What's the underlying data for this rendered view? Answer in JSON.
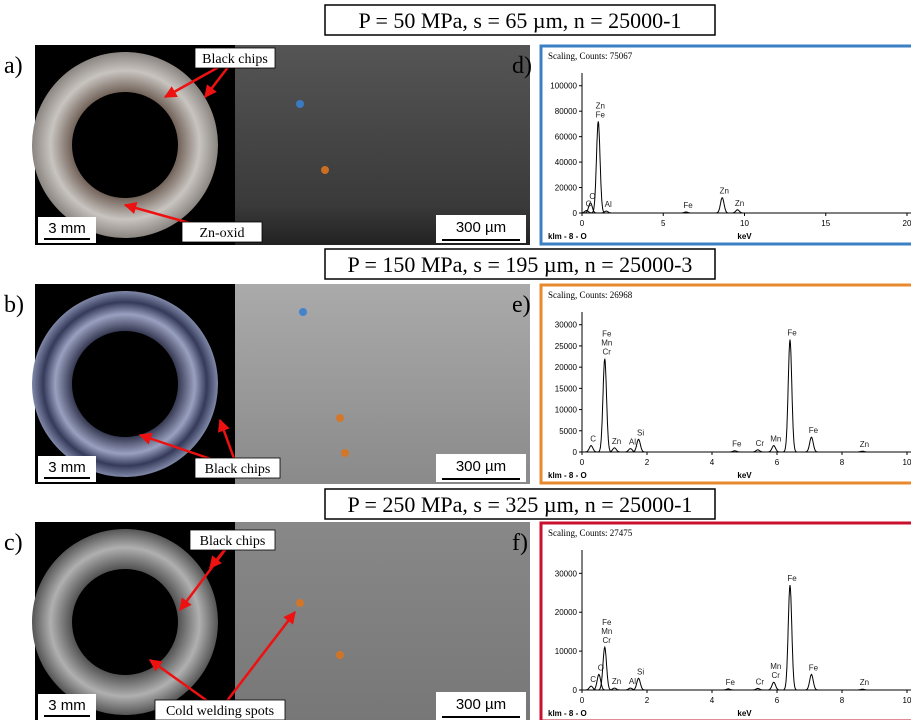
{
  "panels": [
    {
      "title": "P = 50 MPa, s = 65 µm, n = 25000-1",
      "photo_label": "a)",
      "annotations": [
        "Black chips",
        "Zn-oxid"
      ],
      "scale_photo": "3 mm",
      "scale_sem": "300 µm",
      "spectrum": {
        "label": "d)",
        "header": "Scaling, Counts: 75067",
        "footer": "klm - 8 - O",
        "xlabel": "keV",
        "border_color": "#3b7fc4",
        "xlim": [
          0,
          20
        ],
        "xticks": [
          0,
          5,
          10,
          15,
          20
        ],
        "ylim": [
          0,
          110000
        ],
        "yticks": [
          0,
          20000,
          40000,
          60000,
          80000,
          100000
        ],
        "peaks": [
          {
            "x": 0.28,
            "y": 2000,
            "labels": [
              "C"
            ]
          },
          {
            "x": 0.52,
            "y": 8000,
            "labels": [
              "O"
            ]
          },
          {
            "x": 1.0,
            "y": 72000,
            "labels": [
              "Zn",
              "Fe"
            ]
          },
          {
            "x": 1.49,
            "y": 1500,
            "labels": [
              "Al"
            ]
          },
          {
            "x": 6.4,
            "y": 800,
            "labels": [
              "Fe"
            ]
          },
          {
            "x": 8.63,
            "y": 12000,
            "labels": [
              "Zn"
            ]
          },
          {
            "x": 9.57,
            "y": 2500,
            "labels": [
              "Zn"
            ]
          }
        ]
      }
    },
    {
      "title": "P = 150 MPa, s = 195 µm, n = 25000-3",
      "photo_label": "b)",
      "annotations": [
        "Black chips"
      ],
      "scale_photo": "3 mm",
      "scale_sem": "300 µm",
      "spectrum": {
        "label": "e)",
        "header": "Scaling, Counts: 26968",
        "footer": "klm - 8 - O",
        "xlabel": "keV",
        "border_color": "#e8892d",
        "xlim": [
          0,
          10
        ],
        "xticks": [
          0,
          2,
          4,
          6,
          8,
          10
        ],
        "ylim": [
          0,
          33000
        ],
        "yticks": [
          0,
          5000,
          10000,
          15000,
          20000,
          25000,
          30000
        ],
        "peaks": [
          {
            "x": 0.28,
            "y": 1500,
            "labels": [
              "C"
            ]
          },
          {
            "x": 0.7,
            "y": 22000,
            "labels": [
              "Fe",
              "Mn",
              "Cr"
            ]
          },
          {
            "x": 1.0,
            "y": 1000,
            "labels": [
              "Zn"
            ]
          },
          {
            "x": 1.49,
            "y": 800,
            "labels": [
              "Al"
            ]
          },
          {
            "x": 1.74,
            "y": 3000,
            "labels": [
              "Si"
            ]
          },
          {
            "x": 4.7,
            "y": 300,
            "labels": [
              "Fe"
            ]
          },
          {
            "x": 5.41,
            "y": 500,
            "labels": [
              "Cr"
            ]
          },
          {
            "x": 5.9,
            "y": 1500,
            "labels": [
              "Mn"
            ]
          },
          {
            "x": 6.4,
            "y": 26500,
            "labels": [
              "Fe"
            ]
          },
          {
            "x": 7.06,
            "y": 3500,
            "labels": [
              "Fe"
            ]
          },
          {
            "x": 8.63,
            "y": 200,
            "labels": [
              "Zn"
            ]
          }
        ]
      }
    },
    {
      "title": "P = 250 MPa, s = 325 µm, n = 25000-1",
      "photo_label": "c)",
      "annotations": [
        "Black chips",
        "Cold welding spots"
      ],
      "scale_photo": "3 mm",
      "scale_sem": "300 µm",
      "spectrum": {
        "label": "f)",
        "header": "Scaling, Counts: 27475",
        "footer": "klm - 8 - O",
        "xlabel": "keV",
        "border_color": "#c8102e",
        "xlim": [
          0,
          10
        ],
        "xticks": [
          0,
          2,
          4,
          6,
          8,
          10
        ],
        "ylim": [
          0,
          36000
        ],
        "yticks": [
          0,
          10000,
          20000,
          30000
        ],
        "peaks": [
          {
            "x": 0.28,
            "y": 1000,
            "labels": [
              "C"
            ]
          },
          {
            "x": 0.52,
            "y": 4000,
            "labels": [
              "O"
            ]
          },
          {
            "x": 0.7,
            "y": 11000,
            "labels": [
              "Fe",
              "Mn",
              "Cr"
            ]
          },
          {
            "x": 1.0,
            "y": 500,
            "labels": [
              "Zn"
            ]
          },
          {
            "x": 1.49,
            "y": 500,
            "labels": [
              "Al"
            ]
          },
          {
            "x": 1.74,
            "y": 3000,
            "labels": [
              "Si"
            ]
          },
          {
            "x": 4.5,
            "y": 300,
            "labels": [
              "Fe"
            ]
          },
          {
            "x": 5.41,
            "y": 400,
            "labels": [
              "Cr"
            ]
          },
          {
            "x": 5.9,
            "y": 2000,
            "labels": [
              "Mn",
              "Cr"
            ]
          },
          {
            "x": 6.4,
            "y": 27000,
            "labels": [
              "Fe"
            ]
          },
          {
            "x": 7.06,
            "y": 4000,
            "labels": [
              "Fe"
            ]
          },
          {
            "x": 8.63,
            "y": 200,
            "labels": [
              "Zn"
            ]
          }
        ]
      }
    }
  ]
}
